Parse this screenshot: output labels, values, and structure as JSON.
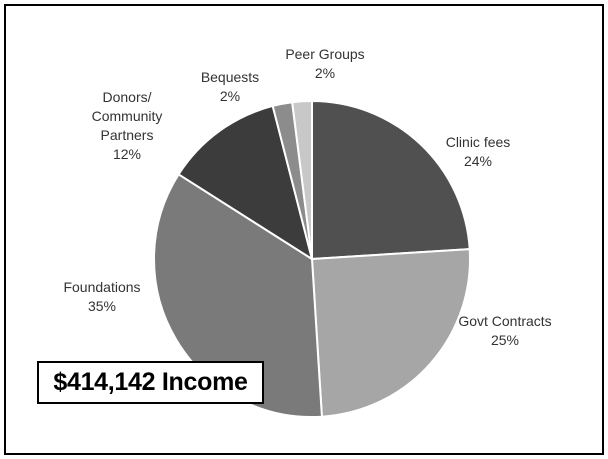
{
  "chart_data": {
    "type": "pie",
    "title": "",
    "slices": [
      {
        "name": "Clinic fees",
        "value": 24,
        "label": "24%",
        "color": "#505050"
      },
      {
        "name": "Govt Contracts",
        "value": 25,
        "label": "25%",
        "color": "#a6a6a6"
      },
      {
        "name": "Foundations",
        "value": 35,
        "label": "35%",
        "color": "#7a7a7a"
      },
      {
        "name": "Donors/ Community Partners",
        "value": 12,
        "label": "12%",
        "color": "#3c3c3c"
      },
      {
        "name": "Bequests",
        "value": 2,
        "label": "2%",
        "color": "#8c8c8c"
      },
      {
        "name": "Peer Groups",
        "value": 2,
        "label": "2%",
        "color": "#c8c8c8"
      }
    ],
    "start_angle_deg": 0,
    "direction": "clockwise",
    "legend": "none",
    "total_label": "$414,142 Income"
  }
}
